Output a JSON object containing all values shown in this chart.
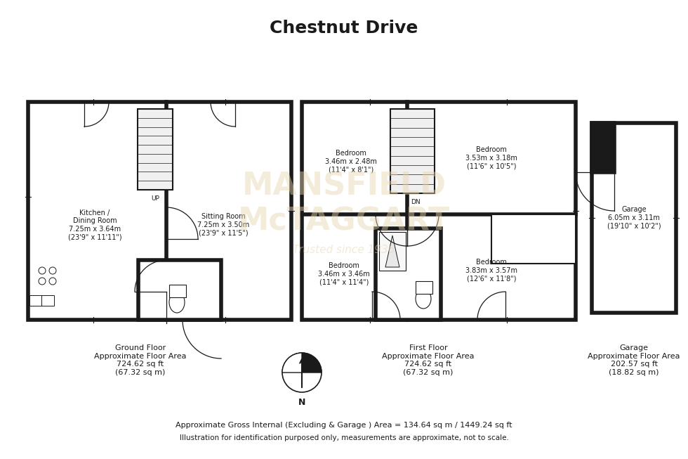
{
  "title": "Chestnut Drive",
  "bg_color": "#ffffff",
  "wall_color": "#1a1a1a",
  "watermark_color": "#e8d5b0",
  "footer_line1": "Approximate Gross Internal (Excluding & Garage ) Area = 134.64 sq m / 1449.24 sq ft",
  "footer_line2": "Illustration for identification purposed only, measurements are approximate, not to scale.",
  "ground_floor_label": "Ground Floor\nApproximate Floor Area\n724.62 sq ft\n(67.32 sq m)",
  "first_floor_label": "First Floor\nApproximate Floor Area\n724.62 sq ft\n(67.32 sq m)",
  "garage_label": "Garage\nApproximate Floor Area\n202.57 sq ft\n(18.82 sq m)",
  "kitchen_label": "Kitchen /\nDining Room\n7.25m x 3.64m\n(23'9\" x 11'11\")",
  "sitting_label": "Sitting Room\n7.25m x 3.50m\n(23'9\" x 11'5\")",
  "bed1_label": "Bedroom\n3.46m x 2.48m\n(11'4\" x 8'1\")",
  "bed2_label": "Bedroom\n3.53m x 3.18m\n(11'6\" x 10'5\")",
  "bed3_label": "Bedroom\n3.46m x 3.46m\n(11'4\" x 11'4\")",
  "bed4_label": "Bedroom\n3.83m x 3.57m\n(12'6\" x 11'8\")",
  "garage_room_label": "Garage\n6.05m x 3.11m\n(19'10\" x 10'2\")"
}
